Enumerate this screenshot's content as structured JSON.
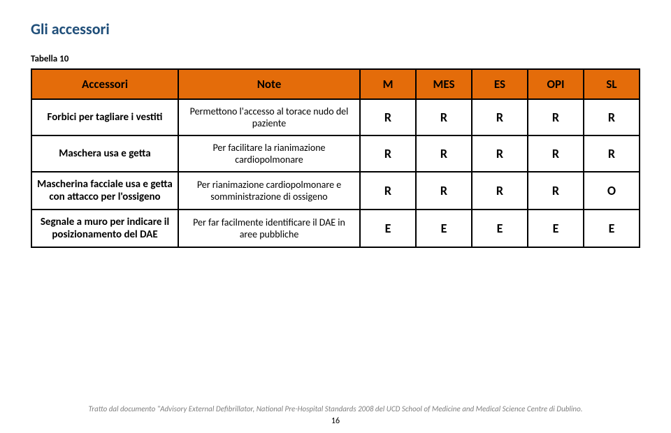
{
  "page": {
    "title": "Gli accessori",
    "table_label": "Tabella 10",
    "footer": "Tratto dal documento \"Advisory External Defibrillator, National Pre-Hospital Standards 2008 del UCD School of Medicine and Medical Science Centre di Dublino.",
    "page_number": "16"
  },
  "table": {
    "header_bg": "#e46c0a",
    "border_color": "#000000",
    "columns": [
      "Accessori",
      "Note",
      "M",
      "MES",
      "ES",
      "OPI",
      "SL"
    ],
    "rows": [
      {
        "acc": "Forbici per tagliare i vestiti",
        "note": "Permettono l'accesso al torace nudo del paziente",
        "vals": [
          "R",
          "R",
          "R",
          "R",
          "R"
        ]
      },
      {
        "acc": "Maschera usa e getta",
        "note": "Per facilitare la rianimazione cardiopolmonare",
        "vals": [
          "R",
          "R",
          "R",
          "R",
          "R"
        ]
      },
      {
        "acc": "Mascherina facciale usa e getta con attacco per l'ossigeno",
        "note": "Per rianimazione cardiopolmonare e somministrazione di ossigeno",
        "vals": [
          "R",
          "R",
          "R",
          "R",
          "O"
        ]
      },
      {
        "acc": "Segnale a muro per indicare il posizionamento del DAE",
        "note": "Per far facilmente identificare il DAE in aree pubbliche",
        "vals": [
          "E",
          "E",
          "E",
          "E",
          "E"
        ]
      }
    ]
  }
}
